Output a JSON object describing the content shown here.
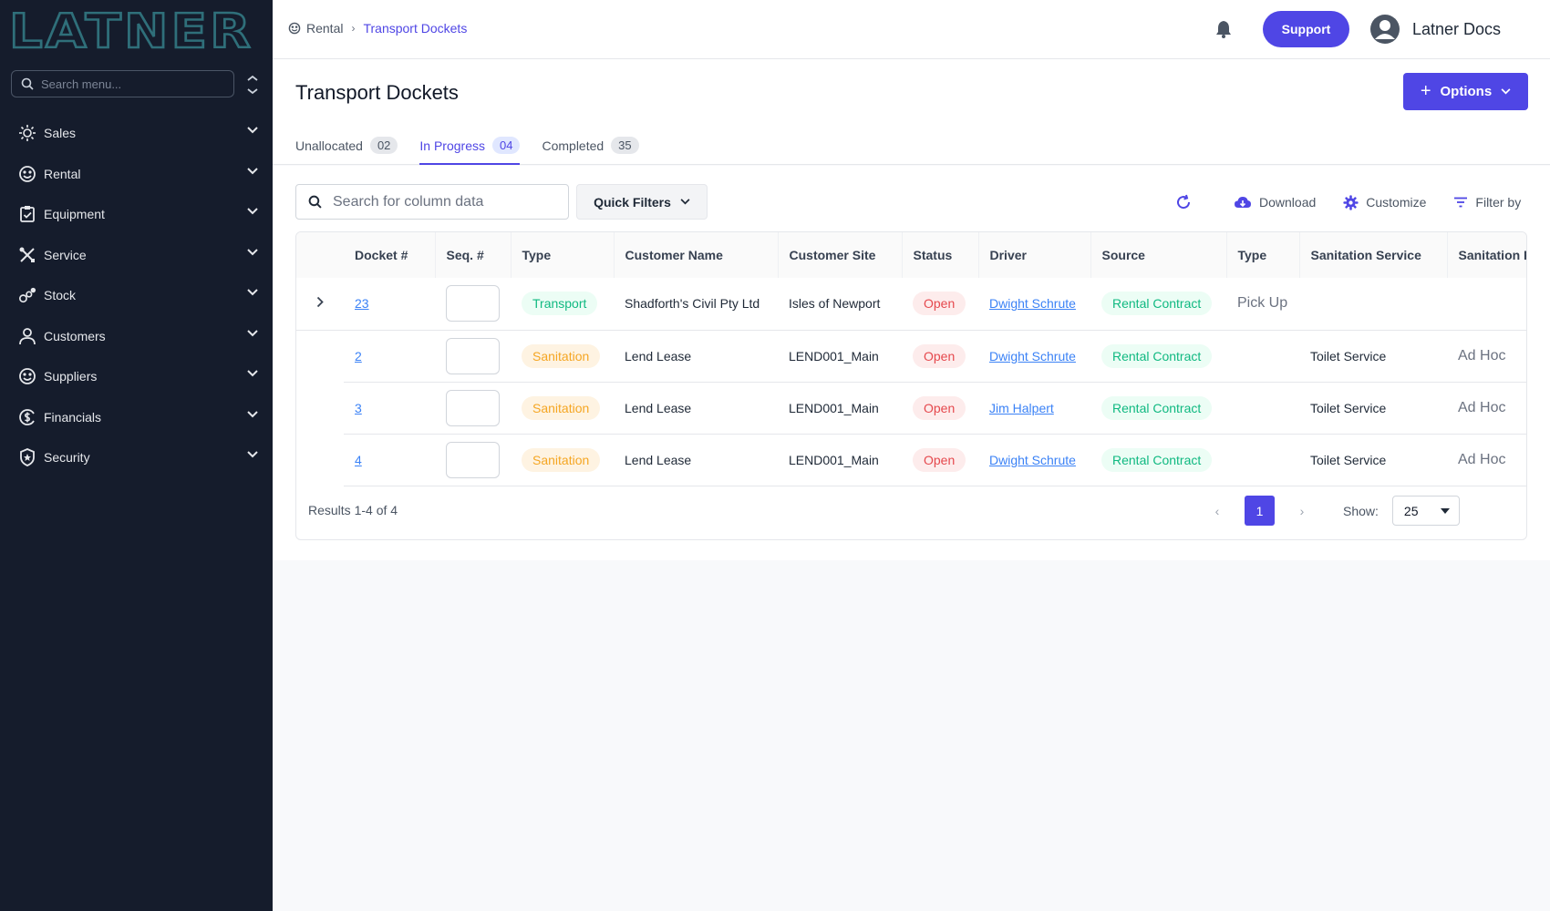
{
  "sidebar": {
    "logo_text": "LATNER",
    "search_placeholder": "Search menu...",
    "items": [
      {
        "label": "Sales",
        "icon": "sales-icon"
      },
      {
        "label": "Rental",
        "icon": "rental-icon"
      },
      {
        "label": "Equipment",
        "icon": "equipment-icon"
      },
      {
        "label": "Service",
        "icon": "service-icon"
      },
      {
        "label": "Stock",
        "icon": "stock-icon"
      },
      {
        "label": "Customers",
        "icon": "customers-icon"
      },
      {
        "label": "Suppliers",
        "icon": "suppliers-icon"
      },
      {
        "label": "Financials",
        "icon": "financials-icon"
      },
      {
        "label": "Security",
        "icon": "security-icon"
      }
    ]
  },
  "topbar": {
    "breadcrumb_root": "Rental",
    "breadcrumb_current": "Transport Dockets",
    "support_label": "Support",
    "user_name": "Latner Docs"
  },
  "header": {
    "title": "Transport Dockets",
    "options_label": "Options",
    "tabs": [
      {
        "label": "Unallocated",
        "count": "02"
      },
      {
        "label": "In Progress",
        "count": "04"
      },
      {
        "label": "Completed",
        "count": "35"
      }
    ]
  },
  "toolbar": {
    "search_placeholder": "Search for column data",
    "quick_filters_label": "Quick Filters",
    "download_label": "Download",
    "customize_label": "Customize",
    "filter_label": "Filter by"
  },
  "table": {
    "columns": [
      "Docket #",
      "Seq. #",
      "Type",
      "Customer Name",
      "Customer Site",
      "Status",
      "Driver",
      "Source",
      "Type",
      "Sanitation Service",
      "Sanitation F"
    ],
    "rows": [
      {
        "docket": "23",
        "type": "Transport",
        "customer": "Shadforth's Civil Pty Ltd",
        "site": "Isles of Newport",
        "status": "Open",
        "driver": "Dwight Schrute",
        "source": "Rental Contract",
        "type2": "Pick Up",
        "san_service": "",
        "san_f": ""
      },
      {
        "docket": "2",
        "type": "Sanitation",
        "customer": "Lend Lease",
        "site": "LEND001_Main",
        "status": "Open",
        "driver": "Dwight Schrute",
        "source": "Rental Contract",
        "type2": "",
        "san_service": "Toilet Service",
        "san_f": "Ad Hoc"
      },
      {
        "docket": "3",
        "type": "Sanitation",
        "customer": "Lend Lease",
        "site": "LEND001_Main",
        "status": "Open",
        "driver": "Jim Halpert",
        "source": "Rental Contract",
        "type2": "",
        "san_service": "Toilet Service",
        "san_f": "Ad Hoc"
      },
      {
        "docket": "4",
        "type": "Sanitation",
        "customer": "Lend Lease",
        "site": "LEND001_Main",
        "status": "Open",
        "driver": "Dwight Schrute",
        "source": "Rental Contract",
        "type2": "",
        "san_service": "Toilet Service",
        "san_f": "Ad Hoc"
      }
    ]
  },
  "footer": {
    "results_text": "Results 1-4 of 4",
    "current_page": "1",
    "show_label": "Show:",
    "page_size": "25"
  },
  "colors": {
    "accent": "#4f46e5",
    "sidebar_bg": "#151c2c",
    "success": "#10b981",
    "warning": "#f5a623",
    "danger": "#e5484d"
  }
}
